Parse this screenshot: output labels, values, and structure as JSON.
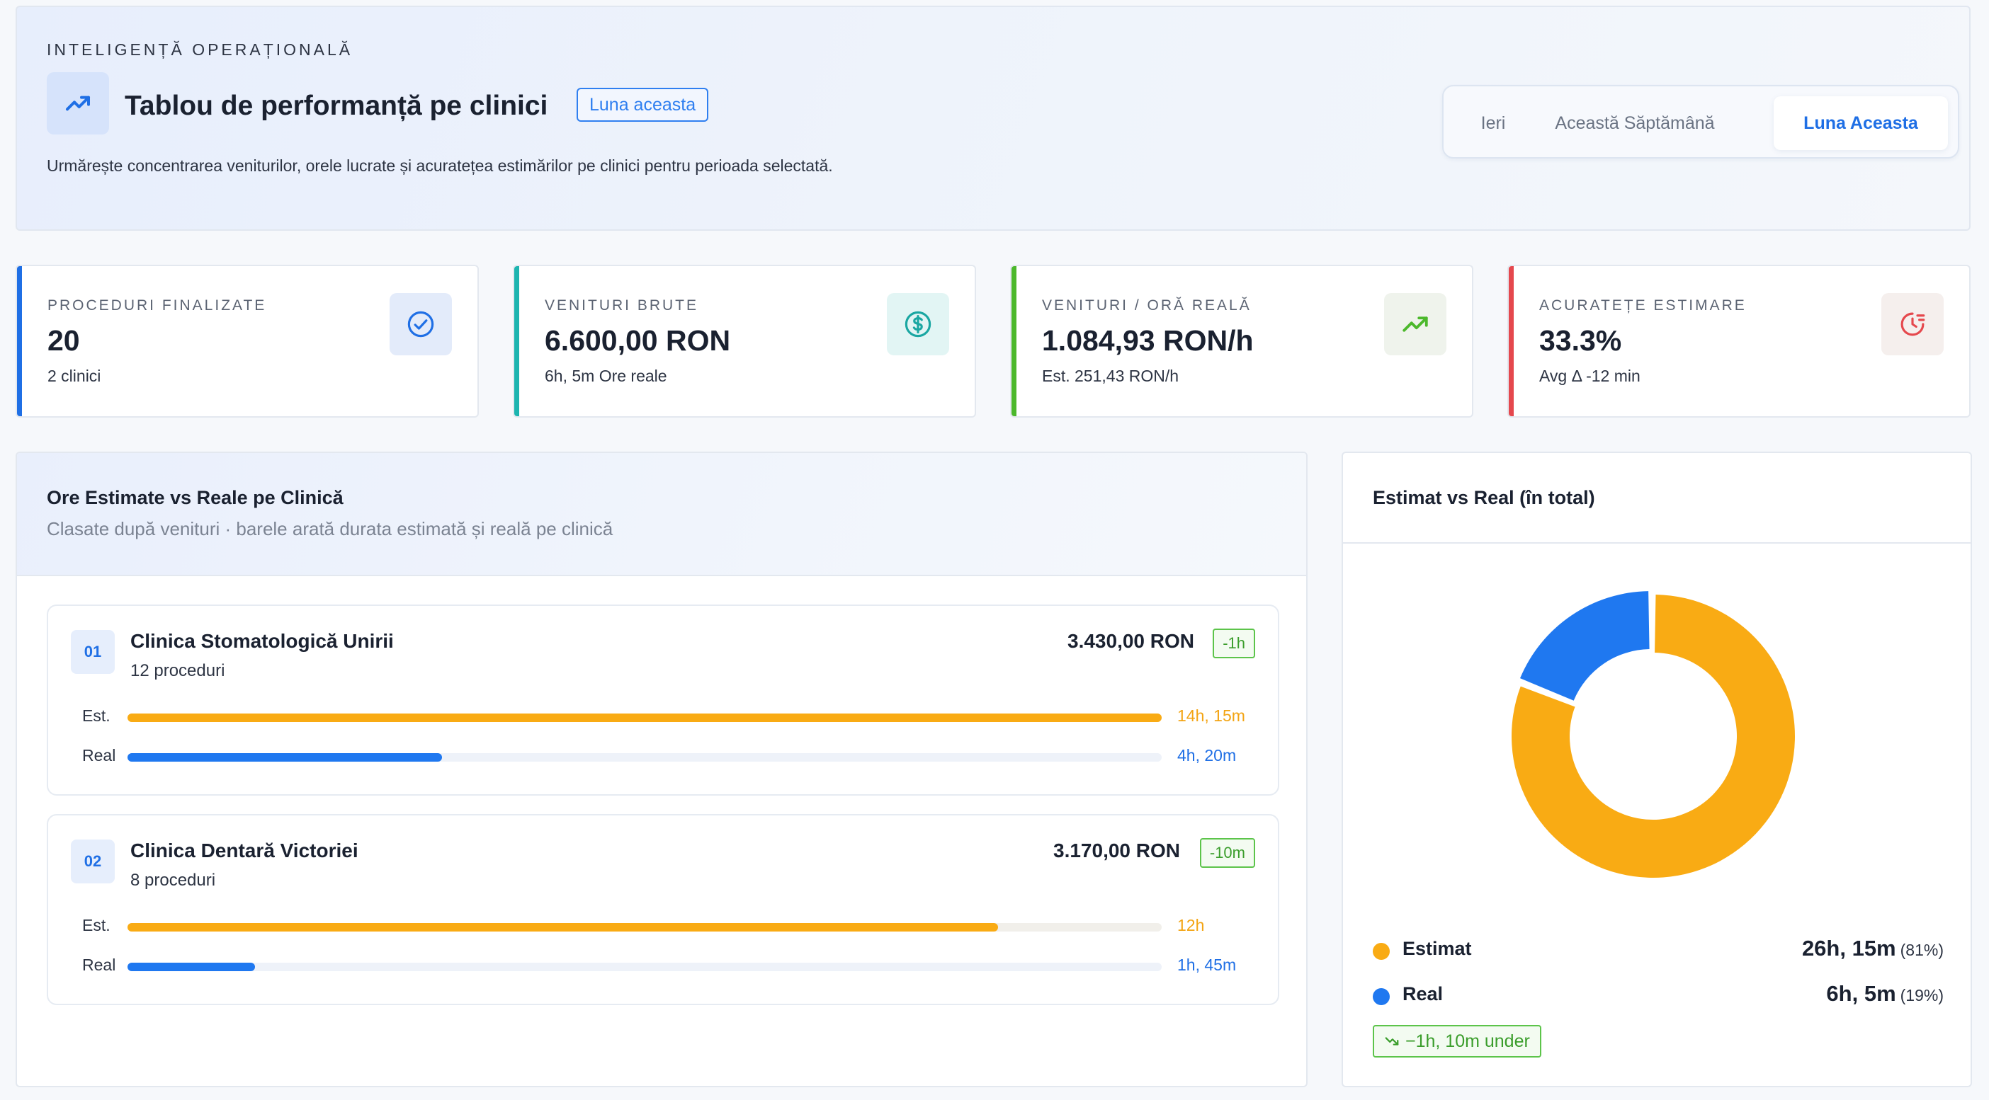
{
  "header": {
    "eyebrow": "INTELIGENȚĂ OPERAȚIONALĂ",
    "title": "Tablou de performanță pe clinici",
    "period_badge": "Luna aceasta",
    "subtitle": "Urmărește concentrarea veniturilor, orele lucrate și acuratețea estimărilor pe clinici pentru perioada selectată.",
    "title_icon": "trend-up-icon",
    "periods": [
      "Ieri",
      "Această Săptămână",
      "Luna Aceasta"
    ],
    "active_period": "Luna Aceasta"
  },
  "kpis": [
    {
      "label": "PROCEDURI FINALIZATE",
      "value": "20",
      "sub": "2 clinici",
      "icon": "check-circle-icon",
      "accent": "#1f6fe5"
    },
    {
      "label": "VENITURI BRUTE",
      "value": "6.600,00 RON",
      "sub": "6h, 5m Ore reale",
      "icon": "dollar-circle-icon",
      "accent": "#1db5b0"
    },
    {
      "label": "VENITURI / ORĂ REALĂ",
      "value": "1.084,93 RON/h",
      "sub": "Est. 251,43 RON/h",
      "icon": "trend-up-icon",
      "accent": "#4cb82c"
    },
    {
      "label": "ACURATEȚE ESTIMARE",
      "value": "33.3%",
      "sub": "Avg Δ -12 min",
      "icon": "timer-icon",
      "accent": "#e5484d"
    }
  ],
  "clinics_panel": {
    "title": "Ore Estimate vs Reale pe Clinică",
    "subtitle": "Clasate după venituri · barele arată durata estimată și reală pe clinică",
    "est_label": "Est.",
    "real_label": "Real",
    "clinics": [
      {
        "rank": "01",
        "name": "Clinica Stomatologică Unirii",
        "procedures": "12 proceduri",
        "revenue": "3.430,00 RON",
        "delta": "-1h",
        "est_text": "14h, 15m",
        "real_text": "4h, 20m",
        "est_fraction": 1.0,
        "real_fraction": 0.304
      },
      {
        "rank": "02",
        "name": "Clinica Dentară Victoriei",
        "procedures": "8 proceduri",
        "revenue": "3.170,00 RON",
        "delta": "-10m",
        "est_text": "12h",
        "real_text": "1h, 45m",
        "est_fraction": 0.842,
        "real_fraction": 0.123
      }
    ]
  },
  "donut_panel": {
    "title": "Estimat vs Real (în total)",
    "legend": [
      {
        "name": "Estimat",
        "value": "26h, 15m",
        "pct": "(81%)",
        "color": "#f9ab14"
      },
      {
        "name": "Real",
        "value": "6h, 5m",
        "pct": "(19%)",
        "color": "#1f78f0"
      }
    ],
    "under_badge": "−1h, 10m under",
    "under_icon": "trend-down-icon"
  },
  "chart_data": {
    "type": "pie",
    "title": "Estimat vs Real (în total)",
    "categories": [
      "Estimat",
      "Real"
    ],
    "values": [
      81,
      19
    ],
    "colors": [
      "#f9ab14",
      "#1f78f0"
    ]
  }
}
